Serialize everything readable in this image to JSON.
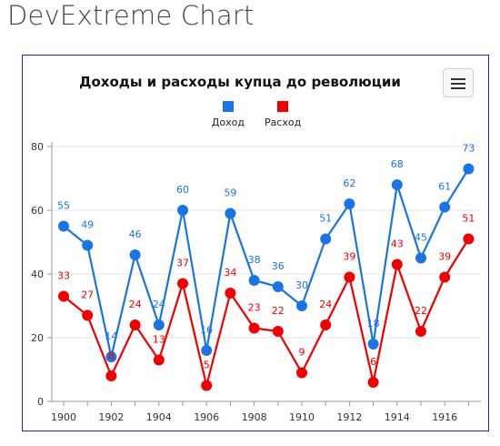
{
  "page": {
    "heading": "DevExtreme Chart"
  },
  "chart": {
    "menu_icon": "hamburger-menu-icon",
    "colors": {
      "income": "#1b74e4",
      "expense": "#f00000",
      "frame": "#2323b5"
    }
  },
  "chart_data": {
    "type": "line",
    "title": "Доходы и расходы купца до революции",
    "xlabel": "",
    "ylabel": "",
    "legend_position": "top-center",
    "grid": true,
    "x": [
      1900,
      1901,
      1902,
      1903,
      1904,
      1905,
      1906,
      1907,
      1908,
      1909,
      1910,
      1911,
      1912,
      1913,
      1914,
      1915,
      1916,
      1917
    ],
    "x_ticks": [
      "1900",
      "1902",
      "1904",
      "1906",
      "1908",
      "1910",
      "1912",
      "1914",
      "1916"
    ],
    "y_ticks": [
      "0",
      "20",
      "40",
      "60",
      "80"
    ],
    "ylim": [
      0,
      80
    ],
    "series": [
      {
        "name": "Доход",
        "values": [
          55,
          49,
          14,
          46,
          24,
          60,
          16,
          59,
          38,
          36,
          30,
          51,
          62,
          18,
          68,
          45,
          61,
          73
        ]
      },
      {
        "name": "Расход",
        "values": [
          33,
          27,
          8,
          24,
          13,
          37,
          5,
          34,
          23,
          22,
          9,
          24,
          39,
          6,
          43,
          22,
          39,
          51
        ]
      }
    ]
  }
}
